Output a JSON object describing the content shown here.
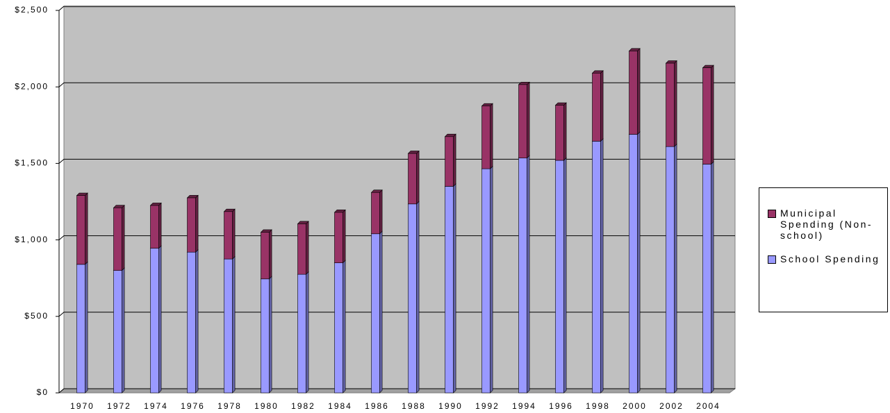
{
  "chart_data": {
    "type": "stacked_bar",
    "categories": [
      "1970",
      "1972",
      "1974",
      "1976",
      "1978",
      "1980",
      "1982",
      "1984",
      "1986",
      "1988",
      "1990",
      "1992",
      "1994",
      "1996",
      "1998",
      "2000",
      "2002",
      "2004"
    ],
    "series": [
      {
        "name": "School Spending",
        "color": "#9999ff",
        "values": [
          840,
          800,
          945,
          920,
          875,
          745,
          775,
          850,
          1040,
          1235,
          1350,
          1465,
          1535,
          1520,
          1645,
          1690,
          1610,
          1495
        ]
      },
      {
        "name": "Municipal Spending (Non-school)",
        "color": "#993366",
        "values": [
          450,
          410,
          280,
          355,
          310,
          305,
          330,
          330,
          270,
          330,
          325,
          410,
          480,
          360,
          445,
          545,
          545,
          630
        ]
      }
    ],
    "ylim": [
      0,
      2500
    ],
    "yticks": [
      {
        "value": 0,
        "label": "$0"
      },
      {
        "value": 500,
        "label": "$500"
      },
      {
        "value": 1000,
        "label": "$1,000"
      },
      {
        "value": 1500,
        "label": "$1,500"
      },
      {
        "value": 2000,
        "label": "$2,000"
      },
      {
        "value": 2500,
        "label": "$2,500"
      }
    ],
    "grid": true,
    "legend": "right"
  }
}
